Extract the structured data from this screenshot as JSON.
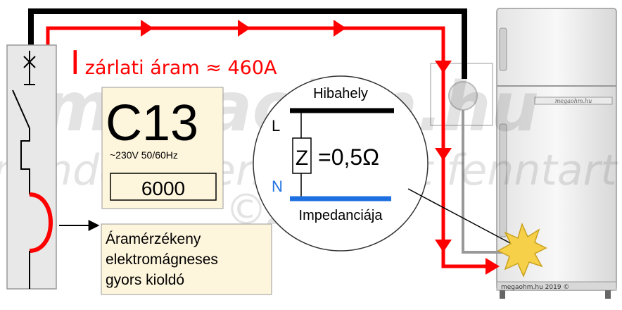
{
  "watermark": {
    "line1": "megaohm.hu",
    "line2": "minden szerzői jogot fenntart",
    "line3": "©2019"
  },
  "fault_current": {
    "big_letter": "I",
    "rest": "zárlati áram ≈ 460A"
  },
  "breaker": {
    "rating": "C13",
    "voltage": "~230V 50/60Hz",
    "breaking_capacity": "6000"
  },
  "trip_note": {
    "line1": "Áramérzékeny",
    "line2": "elektromágneses",
    "line3": "gyors kioldó"
  },
  "fault_circle": {
    "title": "Hibahely",
    "L": "L",
    "N": "N",
    "Z": "Z",
    "value": "=0,5Ω",
    "footer": "Impedanciája"
  },
  "fridge": {
    "brand": "megaohm.hu",
    "footer": "megaohm.hu 2019 ©"
  },
  "colors": {
    "phase_wire": "#ff0000",
    "pe_wire": "#000000",
    "neutral": "#1e6fe0",
    "panel_bg": "#fdf5dc",
    "flash": "#f7d04a"
  }
}
